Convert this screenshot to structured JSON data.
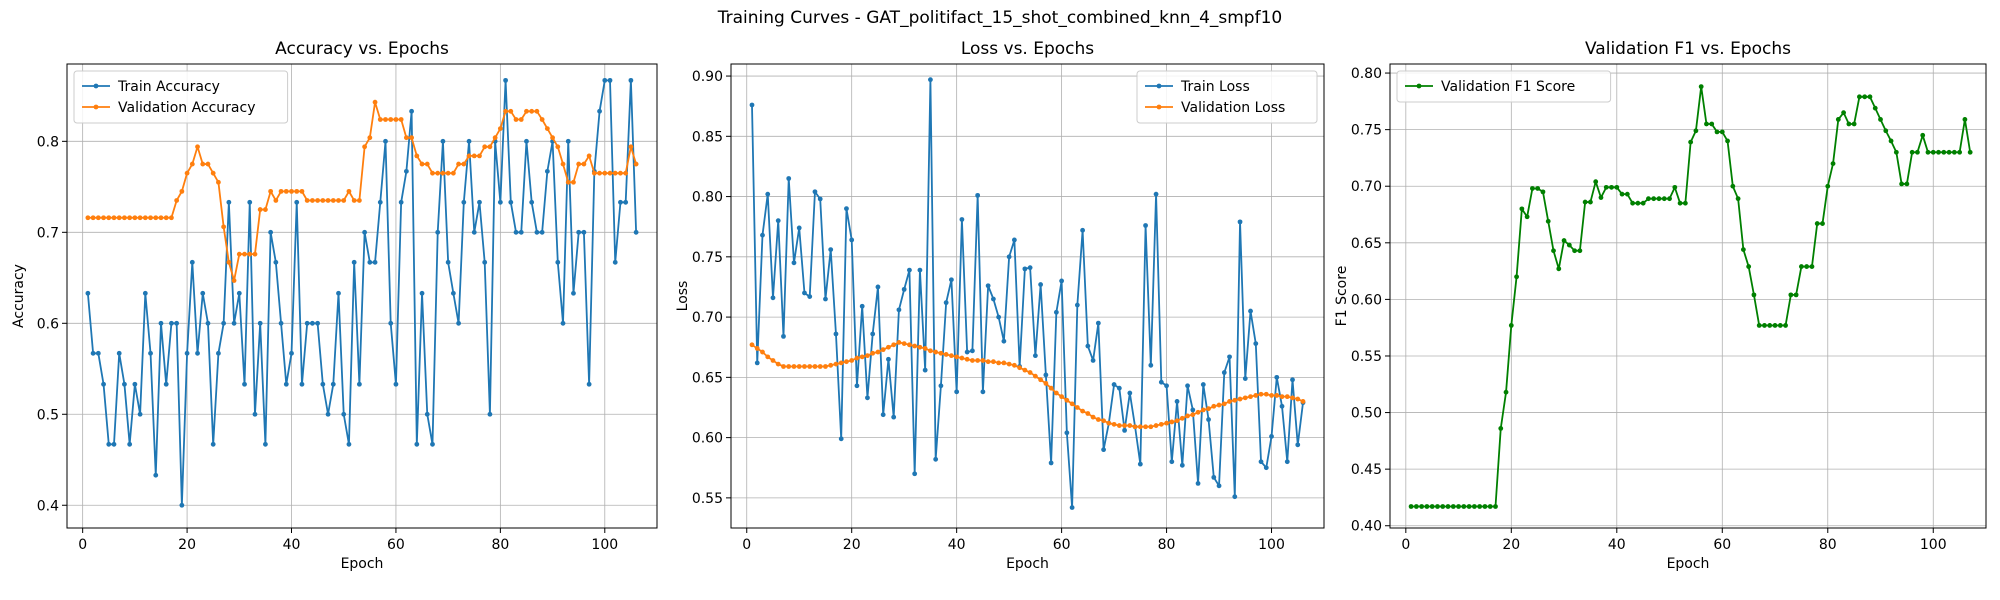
{
  "figure": {
    "title": "Training Curves - GAT_politifact_15_shot_combined_knn_4_smpf10"
  },
  "chart_data": [
    {
      "type": "line",
      "title": "Accuracy vs. Epochs",
      "xlabel": "Epoch",
      "ylabel": "Accuracy",
      "xlim": [
        -3,
        110
      ],
      "ylim": [
        0.375,
        0.885
      ],
      "xticks": [
        0,
        20,
        40,
        60,
        80,
        100
      ],
      "yticks": [
        0.4,
        0.5,
        0.6,
        0.7,
        0.8
      ],
      "xtick_labels": [
        "0",
        "20",
        "40",
        "60",
        "80",
        "100"
      ],
      "ytick_labels": [
        "0.4",
        "0.5",
        "0.6",
        "0.7",
        "0.8"
      ],
      "grid": true,
      "legend": "top-left",
      "series": [
        {
          "name": "Train Accuracy",
          "color": "#1f77b4",
          "values": [
            0.633,
            0.567,
            0.567,
            0.533,
            0.467,
            0.467,
            0.567,
            0.533,
            0.467,
            0.533,
            0.5,
            0.633,
            0.567,
            0.433,
            0.6,
            0.533,
            0.6,
            0.6,
            0.4,
            0.567,
            0.667,
            0.567,
            0.633,
            0.6,
            0.467,
            0.567,
            0.6,
            0.733,
            0.6,
            0.633,
            0.533,
            0.733,
            0.5,
            0.6,
            0.467,
            0.7,
            0.667,
            0.6,
            0.533,
            0.567,
            0.733,
            0.533,
            0.6,
            0.6,
            0.6,
            0.533,
            0.5,
            0.533,
            0.633,
            0.5,
            0.467,
            0.667,
            0.533,
            0.7,
            0.667,
            0.667,
            0.733,
            0.8,
            0.6,
            0.533,
            0.733,
            0.767,
            0.833,
            0.467,
            0.633,
            0.5,
            0.467,
            0.7,
            0.8,
            0.667,
            0.633,
            0.6,
            0.733,
            0.8,
            0.7,
            0.733,
            0.667,
            0.5,
            0.8,
            0.733,
            0.867,
            0.733,
            0.7,
            0.7,
            0.8,
            0.733,
            0.7,
            0.7,
            0.767,
            0.8,
            0.667,
            0.6,
            0.8,
            0.633,
            0.7,
            0.7,
            0.533,
            0.767,
            0.833,
            0.867,
            0.867,
            0.667,
            0.733,
            0.733,
            0.867,
            0.7
          ]
        },
        {
          "name": "Validation Accuracy",
          "color": "#ff7f0e",
          "values": [
            0.716,
            0.716,
            0.716,
            0.716,
            0.716,
            0.716,
            0.716,
            0.716,
            0.716,
            0.716,
            0.716,
            0.716,
            0.716,
            0.716,
            0.716,
            0.716,
            0.716,
            0.735,
            0.745,
            0.765,
            0.775,
            0.794,
            0.775,
            0.775,
            0.765,
            0.755,
            0.706,
            0.667,
            0.647,
            0.676,
            0.676,
            0.676,
            0.676,
            0.725,
            0.725,
            0.745,
            0.735,
            0.745,
            0.745,
            0.745,
            0.745,
            0.745,
            0.735,
            0.735,
            0.735,
            0.735,
            0.735,
            0.735,
            0.735,
            0.735,
            0.745,
            0.735,
            0.735,
            0.794,
            0.804,
            0.843,
            0.824,
            0.824,
            0.824,
            0.824,
            0.824,
            0.804,
            0.804,
            0.784,
            0.775,
            0.775,
            0.765,
            0.765,
            0.765,
            0.765,
            0.765,
            0.775,
            0.775,
            0.784,
            0.784,
            0.784,
            0.794,
            0.794,
            0.804,
            0.814,
            0.833,
            0.833,
            0.824,
            0.824,
            0.833,
            0.833,
            0.833,
            0.824,
            0.814,
            0.804,
            0.794,
            0.775,
            0.755,
            0.755,
            0.775,
            0.775,
            0.784,
            0.765,
            0.765,
            0.765,
            0.765,
            0.765,
            0.765,
            0.765,
            0.794,
            0.775
          ]
        }
      ]
    },
    {
      "type": "line",
      "title": "Loss vs. Epochs",
      "xlabel": "Epoch",
      "ylabel": "Loss",
      "xlim": [
        -3,
        110
      ],
      "ylim": [
        0.525,
        0.91
      ],
      "xticks": [
        0,
        20,
        40,
        60,
        80,
        100
      ],
      "yticks": [
        0.55,
        0.6,
        0.65,
        0.7,
        0.75,
        0.8,
        0.85,
        0.9
      ],
      "xtick_labels": [
        "0",
        "20",
        "40",
        "60",
        "80",
        "100"
      ],
      "ytick_labels": [
        "0.55",
        "0.60",
        "0.65",
        "0.70",
        "0.75",
        "0.80",
        "0.85",
        "0.90"
      ],
      "grid": true,
      "legend": "top-right",
      "series": [
        {
          "name": "Train Loss",
          "color": "#1f77b4",
          "values": [
            0.876,
            0.662,
            0.768,
            0.802,
            0.716,
            0.78,
            0.684,
            0.815,
            0.745,
            0.774,
            0.72,
            0.717,
            0.804,
            0.798,
            0.715,
            0.756,
            0.686,
            0.599,
            0.79,
            0.764,
            0.643,
            0.709,
            0.633,
            0.686,
            0.725,
            0.619,
            0.665,
            0.617,
            0.706,
            0.723,
            0.739,
            0.57,
            0.739,
            0.656,
            0.897,
            0.582,
            0.643,
            0.712,
            0.731,
            0.638,
            0.781,
            0.671,
            0.672,
            0.801,
            0.638,
            0.726,
            0.715,
            0.7,
            0.68,
            0.75,
            0.764,
            0.659,
            0.74,
            0.741,
            0.668,
            0.727,
            0.652,
            0.579,
            0.704,
            0.73,
            0.604,
            0.542,
            0.71,
            0.772,
            0.676,
            0.664,
            0.695,
            0.59,
            0.612,
            0.644,
            0.641,
            0.606,
            0.637,
            0.609,
            0.578,
            0.776,
            0.66,
            0.802,
            0.646,
            0.643,
            0.58,
            0.63,
            0.577,
            0.643,
            0.623,
            0.562,
            0.644,
            0.615,
            0.567,
            0.56,
            0.654,
            0.667,
            0.551,
            0.779,
            0.649,
            0.705,
            0.678,
            0.58,
            0.575,
            0.601,
            0.65,
            0.626,
            0.58,
            0.648,
            0.594,
            0.629
          ]
        },
        {
          "name": "Validation Loss",
          "color": "#ff7f0e",
          "values": [
            0.677,
            0.674,
            0.671,
            0.667,
            0.664,
            0.661,
            0.659,
            0.659,
            0.659,
            0.659,
            0.659,
            0.659,
            0.659,
            0.659,
            0.659,
            0.66,
            0.661,
            0.662,
            0.663,
            0.664,
            0.666,
            0.667,
            0.668,
            0.67,
            0.671,
            0.673,
            0.675,
            0.677,
            0.679,
            0.678,
            0.677,
            0.676,
            0.675,
            0.674,
            0.672,
            0.671,
            0.67,
            0.669,
            0.668,
            0.667,
            0.666,
            0.665,
            0.664,
            0.664,
            0.664,
            0.663,
            0.663,
            0.662,
            0.662,
            0.661,
            0.66,
            0.658,
            0.656,
            0.654,
            0.651,
            0.648,
            0.645,
            0.641,
            0.637,
            0.634,
            0.631,
            0.628,
            0.625,
            0.622,
            0.62,
            0.617,
            0.615,
            0.614,
            0.612,
            0.611,
            0.61,
            0.61,
            0.61,
            0.609,
            0.609,
            0.609,
            0.609,
            0.61,
            0.611,
            0.612,
            0.613,
            0.614,
            0.616,
            0.618,
            0.619,
            0.621,
            0.623,
            0.624,
            0.626,
            0.627,
            0.628,
            0.63,
            0.631,
            0.632,
            0.633,
            0.634,
            0.635,
            0.636,
            0.636,
            0.635,
            0.635,
            0.634,
            0.634,
            0.633,
            0.632,
            0.63
          ]
        }
      ]
    },
    {
      "type": "line",
      "title": "Validation F1 vs. Epochs",
      "xlabel": "Epoch",
      "ylabel": "F1 Score",
      "xlim": [
        -3,
        110
      ],
      "ylim": [
        0.398,
        0.808
      ],
      "xticks": [
        0,
        20,
        40,
        60,
        80,
        100
      ],
      "yticks": [
        0.4,
        0.45,
        0.5,
        0.55,
        0.6,
        0.65,
        0.7,
        0.75,
        0.8
      ],
      "xtick_labels": [
        "0",
        "20",
        "40",
        "60",
        "80",
        "100"
      ],
      "ytick_labels": [
        "0.40",
        "0.45",
        "0.50",
        "0.55",
        "0.60",
        "0.65",
        "0.70",
        "0.75",
        "0.80"
      ],
      "grid": true,
      "legend": "top-left",
      "series": [
        {
          "name": "Validation F1 Score",
          "color": "#008000",
          "values": [
            0.417,
            0.417,
            0.417,
            0.417,
            0.417,
            0.417,
            0.417,
            0.417,
            0.417,
            0.417,
            0.417,
            0.417,
            0.417,
            0.417,
            0.417,
            0.417,
            0.417,
            0.486,
            0.518,
            0.577,
            0.62,
            0.68,
            0.673,
            0.698,
            0.698,
            0.695,
            0.669,
            0.643,
            0.627,
            0.652,
            0.648,
            0.643,
            0.643,
            0.686,
            0.686,
            0.704,
            0.69,
            0.699,
            0.699,
            0.699,
            0.693,
            0.693,
            0.685,
            0.685,
            0.685,
            0.689,
            0.689,
            0.689,
            0.689,
            0.689,
            0.699,
            0.685,
            0.685,
            0.739,
            0.749,
            0.788,
            0.755,
            0.755,
            0.748,
            0.748,
            0.74,
            0.7,
            0.689,
            0.644,
            0.629,
            0.604,
            0.577,
            0.577,
            0.577,
            0.577,
            0.577,
            0.577,
            0.604,
            0.604,
            0.629,
            0.629,
            0.629,
            0.667,
            0.667,
            0.7,
            0.72,
            0.759,
            0.765,
            0.755,
            0.755,
            0.779,
            0.779,
            0.779,
            0.769,
            0.759,
            0.749,
            0.74,
            0.73,
            0.702,
            0.702,
            0.73,
            0.73,
            0.745,
            0.73,
            0.73,
            0.73,
            0.73,
            0.73,
            0.73,
            0.73,
            0.759,
            0.73
          ]
        }
      ]
    }
  ]
}
